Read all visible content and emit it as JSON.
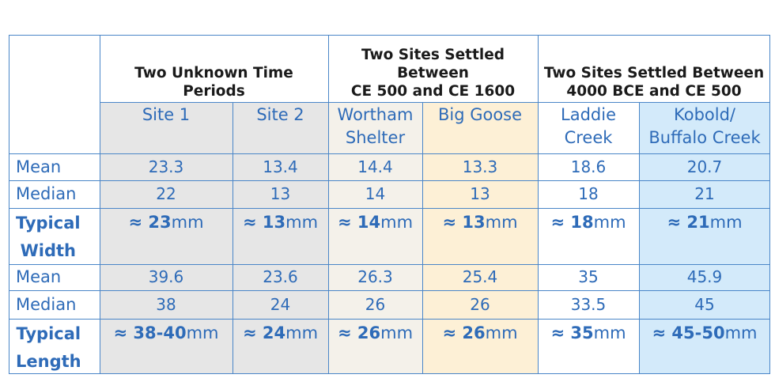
{
  "colors": {
    "border": "#4a86c8",
    "text_blue": "#2e6bb8",
    "header_text": "#1a1a1a",
    "unknown_bg": "#e6e6e6",
    "wortham_bg": "#f4f1ea",
    "big_goose_bg": "#fdf0d6",
    "kobold_bg": "#d3eafa",
    "white": "#ffffff"
  },
  "groups": [
    {
      "label": "Two Unknown Time\nPeriods"
    },
    {
      "label": "Two Sites Settled\nBetween\nCE 500 and CE 1600"
    },
    {
      "label": "Two Sites Settled Between\n4000 BCE and CE 500"
    }
  ],
  "sites": [
    "Site 1",
    "Site 2",
    "Wortham\nShelter",
    "Big Goose",
    "Laddie\nCreek",
    "Kobold/\nBuffalo Creek"
  ],
  "rows": [
    {
      "label": "Mean",
      "values": [
        "23.3",
        "13.4",
        "14.4",
        "13.3",
        "18.6",
        "20.7"
      ]
    },
    {
      "label": "Median",
      "values": [
        "22",
        "13",
        "14",
        "13",
        "18",
        "21"
      ]
    },
    {
      "label": "Typical\nWidth",
      "typical": true,
      "values": [
        "≈ 23",
        "≈ 13",
        "≈ 14",
        "≈ 13",
        "≈ 18",
        "≈ 21"
      ],
      "unit": " mm"
    },
    {
      "label": "Mean",
      "values": [
        "39.6",
        "23.6",
        "26.3",
        "25.4",
        "35",
        "45.9"
      ]
    },
    {
      "label": "Median",
      "values": [
        "38",
        "24",
        "26",
        "26",
        "33.5",
        "45"
      ]
    },
    {
      "label": "Typical\nLength",
      "typical": true,
      "values": [
        "≈ 38-40",
        "≈ 24",
        "≈ 26",
        "≈ 26",
        "≈ 35",
        "≈ 45-50"
      ],
      "unit": " mm"
    }
  ]
}
